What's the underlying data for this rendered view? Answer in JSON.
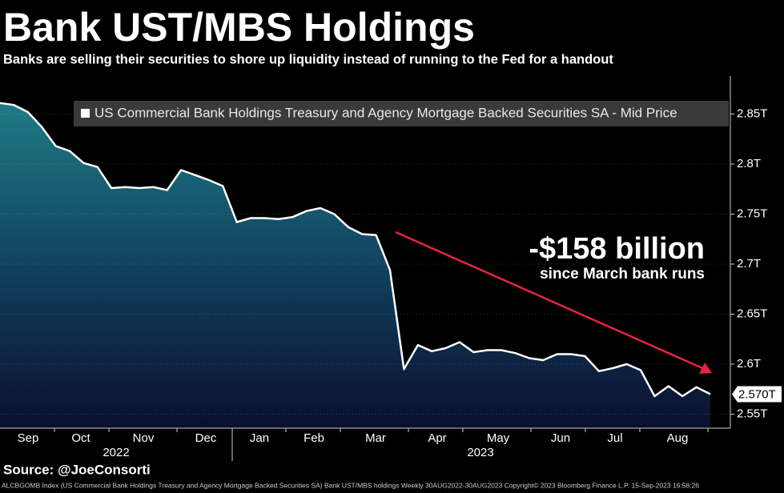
{
  "chart_data": {
    "type": "area",
    "title": "Bank UST/MBS Holdings",
    "subtitle": "Banks are selling their securities to shore up liquidity instead of running to the Fed for a handout",
    "legend": "US Commercial Bank Holdings Treasury and Agency Mortgage Backed Securities SA - Mid Price",
    "months": [
      "Sep",
      "Oct",
      "Nov",
      "Dec",
      "Jan",
      "Feb",
      "Mar",
      "Apr",
      "May",
      "Jun",
      "Jul",
      "Aug"
    ],
    "years": [
      "2022",
      "2023"
    ],
    "values": [
      2.861,
      2.859,
      2.852,
      2.837,
      2.818,
      2.813,
      2.801,
      2.797,
      2.776,
      2.777,
      2.776,
      2.777,
      2.774,
      2.794,
      2.789,
      2.784,
      2.778,
      2.742,
      2.746,
      2.746,
      2.745,
      2.747,
      2.753,
      2.756,
      2.75,
      2.737,
      2.73,
      2.729,
      2.694,
      2.595,
      2.619,
      2.613,
      2.616,
      2.622,
      2.612,
      2.614,
      2.614,
      2.611,
      2.606,
      2.604,
      2.61,
      2.61,
      2.608,
      2.593,
      2.596,
      2.6,
      2.594,
      2.568,
      2.578,
      2.568,
      2.577,
      2.57
    ],
    "value_labels": [
      null,
      null,
      null,
      null,
      null,
      null,
      null,
      null,
      null,
      null,
      null,
      null,
      null,
      null,
      null,
      null,
      null,
      null,
      null,
      null,
      null,
      null,
      null,
      null,
      null,
      null,
      null,
      null,
      null,
      null,
      null,
      null,
      null,
      null,
      null,
      null,
      null,
      null,
      null,
      null,
      null,
      null,
      null,
      null,
      null,
      null,
      null,
      null,
      null,
      null,
      null,
      "2.570T"
    ],
    "ylim": [
      2.536,
      2.888
    ],
    "yticks": [
      {
        "value": 2.55,
        "label": "2.55T"
      },
      {
        "value": 2.6,
        "label": "2.6T"
      },
      {
        "value": 2.65,
        "label": "2.65T"
      },
      {
        "value": 2.7,
        "label": "2.7T"
      },
      {
        "value": 2.75,
        "label": "2.75T"
      },
      {
        "value": 2.8,
        "label": "2.8T"
      },
      {
        "value": 2.85,
        "label": "2.85T"
      }
    ],
    "grid": true,
    "color": "#ffffff",
    "annotation": "-$158 billion",
    "annotation_sub": "since March bank runs",
    "arrow_color": "#e8233f",
    "source": "Source: @JoeConsorti",
    "footer": "ALCBGOMB Index (US Commercial Bank Holdings Treasury and Agency Mortgage Backed Securities SA) Bank UST/MBS holdings  Weekly 30AUG2022-30AUG2023   Copyright© 2023 Bloomberg Finance L.P.    15-Sep-2023 16:58:26"
  }
}
